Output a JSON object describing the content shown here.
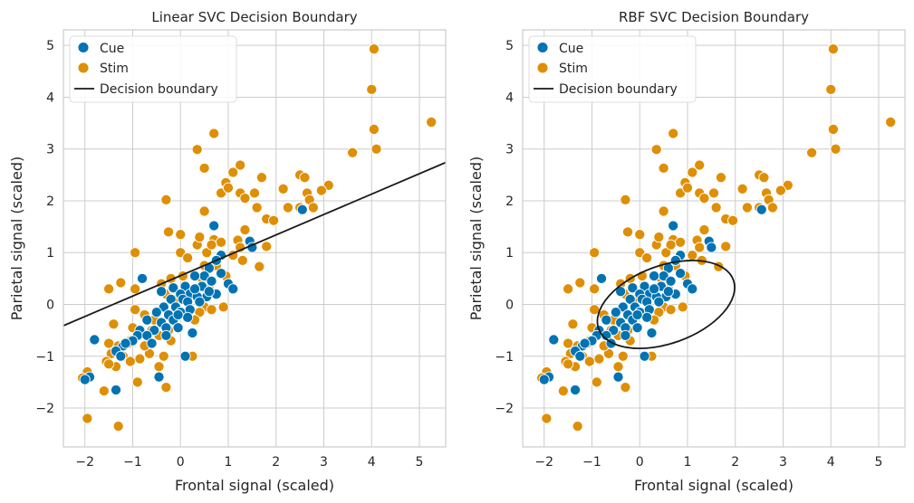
{
  "figure": {
    "colors": {
      "cue": "#0173b2",
      "stim": "#de8f05",
      "boundary": "#1a1a1a",
      "grid": "#cccccc",
      "frame": "#cccccc"
    }
  },
  "legend": {
    "cue": "Cue",
    "stim": "Stim",
    "boundary": "Decision boundary"
  },
  "chart_data": [
    {
      "type": "scatter",
      "title": "Linear SVC Decision Boundary",
      "xlabel": "Frontal signal (scaled)",
      "ylabel": "Parietal signal (scaled)",
      "xlim": [
        -2.45,
        5.55
      ],
      "ylim": [
        -2.75,
        5.3
      ],
      "xticks": [
        -2,
        -1,
        0,
        1,
        2,
        3,
        4,
        5
      ],
      "yticks": [
        -2,
        -1,
        0,
        1,
        2,
        3,
        4,
        5
      ],
      "grid": true,
      "legend_position": "top-left",
      "series_ref": "shared",
      "boundary": {
        "kind": "line",
        "points": [
          [
            -2.45,
            -0.41
          ],
          [
            5.55,
            2.74
          ]
        ]
      }
    },
    {
      "type": "scatter",
      "title": "RBF SVC Decision Boundary",
      "xlabel": "Frontal signal (scaled)",
      "ylabel": "Parietal signal (scaled)",
      "xlim": [
        -2.45,
        5.55
      ],
      "ylim": [
        -2.75,
        5.3
      ],
      "xticks": [
        -2,
        -1,
        0,
        1,
        2,
        3,
        4,
        5
      ],
      "yticks": [
        -2,
        -1,
        0,
        1,
        2,
        3,
        4,
        5
      ],
      "grid": true,
      "legend_position": "top-left",
      "series_ref": "shared",
      "boundary": {
        "kind": "ellipse",
        "cx": 0.55,
        "cy": 0.0,
        "rx": 1.5,
        "ry": 0.75,
        "angle_deg": 20
      }
    }
  ],
  "series": {
    "stim": [
      [
        4.05,
        4.93
      ],
      [
        4.0,
        4.15
      ],
      [
        5.25,
        3.52
      ],
      [
        4.05,
        3.38
      ],
      [
        4.1,
        3.0
      ],
      [
        3.6,
        2.93
      ],
      [
        0.7,
        3.3
      ],
      [
        0.35,
        2.99
      ],
      [
        1.25,
        2.69
      ],
      [
        0.5,
        2.63
      ],
      [
        1.1,
        2.55
      ],
      [
        2.5,
        2.5
      ],
      [
        2.6,
        2.45
      ],
      [
        3.1,
        2.3
      ],
      [
        0.95,
        2.35
      ],
      [
        1.7,
        2.45
      ],
      [
        1.25,
        2.15
      ],
      [
        1.55,
        2.15
      ],
      [
        2.15,
        2.23
      ],
      [
        2.65,
        2.15
      ],
      [
        2.95,
        2.2
      ],
      [
        0.85,
        2.15
      ],
      [
        1.0,
        2.25
      ],
      [
        1.35,
        2.05
      ],
      [
        -0.3,
        2.02
      ],
      [
        2.7,
        2.02
      ],
      [
        2.5,
        1.87
      ],
      [
        2.78,
        1.87
      ],
      [
        2.25,
        1.87
      ],
      [
        1.6,
        1.87
      ],
      [
        0.5,
        1.8
      ],
      [
        1.8,
        1.65
      ],
      [
        1.95,
        1.62
      ],
      [
        -0.25,
        1.4
      ],
      [
        1.35,
        1.44
      ],
      [
        0.0,
        1.35
      ],
      [
        0.7,
        1.25
      ],
      [
        0.85,
        1.2
      ],
      [
        1.2,
        1.24
      ],
      [
        0.35,
        1.15
      ],
      [
        0.55,
        1.0
      ],
      [
        1.25,
        1.1
      ],
      [
        1.8,
        1.12
      ],
      [
        1.1,
        0.95
      ],
      [
        0.4,
        1.3
      ],
      [
        0.65,
        1.15
      ],
      [
        -0.95,
        1.0
      ],
      [
        0.0,
        1.0
      ],
      [
        0.75,
        0.75
      ],
      [
        1.3,
        0.85
      ],
      [
        0.15,
        0.9
      ],
      [
        1.65,
        0.73
      ],
      [
        0.5,
        0.75
      ],
      [
        -0.2,
        0.5
      ],
      [
        -0.95,
        0.3
      ],
      [
        -1.5,
        0.3
      ],
      [
        -1.25,
        0.42
      ],
      [
        -0.4,
        0.4
      ],
      [
        0.95,
        0.55
      ],
      [
        0.05,
        0.55
      ],
      [
        0.6,
        0.3
      ],
      [
        -0.3,
        0.2
      ],
      [
        -0.1,
        0.1
      ],
      [
        -0.95,
        -0.1
      ],
      [
        0.5,
        -0.05
      ],
      [
        0.65,
        -0.1
      ],
      [
        0.4,
        -0.15
      ],
      [
        -0.75,
        -0.2
      ],
      [
        -0.55,
        -0.3
      ],
      [
        -1.4,
        -0.38
      ],
      [
        -0.6,
        -0.5
      ],
      [
        -1.0,
        -0.45
      ],
      [
        -0.25,
        -0.5
      ],
      [
        -0.45,
        -0.6
      ],
      [
        -0.85,
        -0.55
      ],
      [
        -0.65,
        -0.75
      ],
      [
        -1.05,
        -0.7
      ],
      [
        -1.5,
        -0.75
      ],
      [
        -1.3,
        -0.8
      ],
      [
        -1.1,
        -0.75
      ],
      [
        -1.45,
        -0.95
      ],
      [
        -1.2,
        -1.0
      ],
      [
        -1.55,
        -1.1
      ],
      [
        -0.85,
        -1.05
      ],
      [
        -1.05,
        -1.1
      ],
      [
        -0.45,
        -1.2
      ],
      [
        -1.35,
        -1.2
      ],
      [
        -1.5,
        -1.15
      ],
      [
        -0.35,
        -1.0
      ],
      [
        0.25,
        -1.0
      ],
      [
        -1.95,
        -1.3
      ],
      [
        -2.05,
        -1.42
      ],
      [
        -0.9,
        -1.5
      ],
      [
        -1.6,
        -1.67
      ],
      [
        -0.3,
        -1.6
      ],
      [
        -1.95,
        -2.2
      ],
      [
        -1.3,
        -2.35
      ],
      [
        -0.15,
        0.3
      ],
      [
        0.3,
        -0.3
      ],
      [
        0.9,
        -0.05
      ],
      [
        -0.65,
        -0.95
      ],
      [
        -0.2,
        -0.7
      ],
      [
        -0.75,
        -0.8
      ],
      [
        0.45,
        0.5
      ]
    ],
    "cue": [
      [
        0.7,
        1.52
      ],
      [
        1.45,
        1.22
      ],
      [
        2.55,
        1.83
      ],
      [
        1.5,
        1.1
      ],
      [
        0.85,
        0.95
      ],
      [
        0.75,
        0.85
      ],
      [
        0.6,
        0.7
      ],
      [
        0.85,
        0.6
      ],
      [
        0.5,
        0.55
      ],
      [
        0.3,
        0.55
      ],
      [
        1.0,
        0.4
      ],
      [
        0.65,
        0.45
      ],
      [
        0.45,
        0.35
      ],
      [
        0.1,
        0.35
      ],
      [
        -0.15,
        0.32
      ],
      [
        -0.8,
        0.5
      ],
      [
        0.75,
        0.2
      ],
      [
        0.2,
        0.2
      ],
      [
        0.55,
        0.15
      ],
      [
        1.1,
        0.3
      ],
      [
        -0.4,
        0.25
      ],
      [
        0.0,
        0.2
      ],
      [
        0.35,
        0.15
      ],
      [
        0.05,
        0.1
      ],
      [
        -0.2,
        0.1
      ],
      [
        0.15,
        0.05
      ],
      [
        0.4,
        0.05
      ],
      [
        -0.1,
        -0.05
      ],
      [
        -0.35,
        -0.05
      ],
      [
        0.2,
        -0.1
      ],
      [
        0.0,
        -0.15
      ],
      [
        -0.25,
        -0.2
      ],
      [
        0.15,
        -0.25
      ],
      [
        -0.5,
        -0.15
      ],
      [
        -0.15,
        -0.3
      ],
      [
        -0.4,
        -0.35
      ],
      [
        -0.7,
        -0.3
      ],
      [
        0.25,
        -0.55
      ],
      [
        -0.05,
        -0.45
      ],
      [
        -0.3,
        -0.45
      ],
      [
        -0.55,
        -0.5
      ],
      [
        -0.85,
        -0.5
      ],
      [
        -0.9,
        -0.6
      ],
      [
        -0.7,
        -0.6
      ],
      [
        -1.0,
        -0.7
      ],
      [
        -1.2,
        -0.8
      ],
      [
        -1.35,
        -0.9
      ],
      [
        -1.25,
        -1.0
      ],
      [
        -1.15,
        -0.75
      ],
      [
        -0.45,
        -1.4
      ],
      [
        0.1,
        -1.0
      ],
      [
        -1.8,
        -0.68
      ],
      [
        -1.35,
        -1.65
      ],
      [
        -1.9,
        -1.4
      ],
      [
        -2.0,
        -1.45
      ],
      [
        0.6,
        0.25
      ],
      [
        0.3,
        0.3
      ],
      [
        -0.05,
        -0.2
      ],
      [
        -0.6,
        -0.75
      ],
      [
        -0.3,
        -0.6
      ]
    ]
  }
}
